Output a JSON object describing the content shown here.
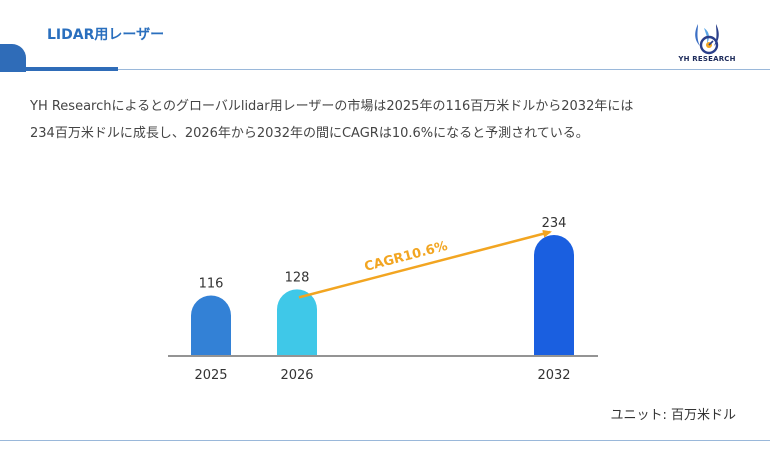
{
  "header": {
    "title": "LIDAR用レーザー",
    "logo_text": "YH RESEARCH"
  },
  "description": {
    "line1": "YH Researchによるとのグローバルlidar用レーザーの市場は2025年の116百万米ドルから2032年には",
    "line2": "234百万米ドルに成長し、2026年から2032年の間にCAGRは10.6%になると予測されている。"
  },
  "chart_data": {
    "type": "bar",
    "categories": [
      "2025",
      "2026",
      "2032"
    ],
    "values": [
      116,
      128,
      234
    ],
    "value_labels": [
      "116",
      "128",
      "234"
    ],
    "annotation": "CAGR10.6%",
    "ylim": [
      0,
      250
    ],
    "grid": false,
    "colors": [
      "#3381d6",
      "#3fc8e8",
      "#1a5fe0"
    ],
    "arrow_color": "#f2a521"
  },
  "unit_label": "ユニット: 百万米ドル"
}
